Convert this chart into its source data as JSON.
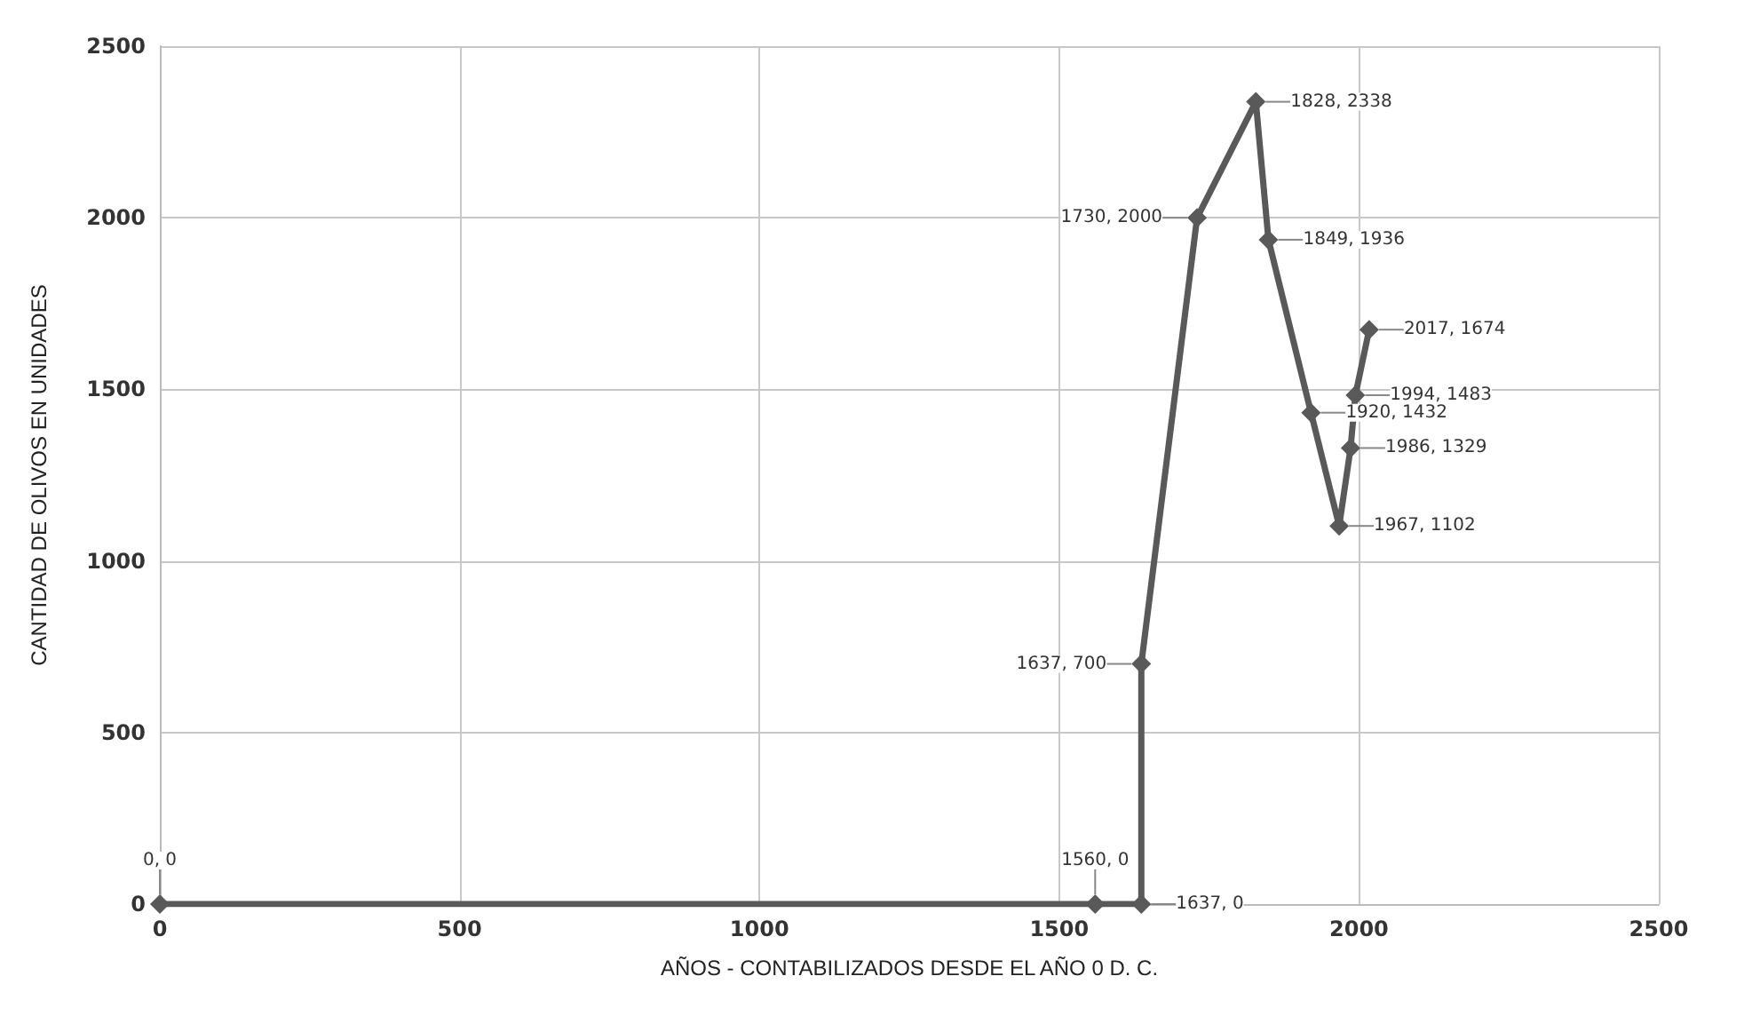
{
  "chart_data": {
    "type": "line",
    "xlabel": "AÑOS - CONTABILIZADOS DESDE EL AÑO 0 D. C.",
    "ylabel": "CANTIDAD DE OLIVOS EN UNIDADES",
    "x": [
      0,
      1560,
      1637,
      1637,
      1730,
      1828,
      1849,
      1920,
      1967,
      1986,
      1994,
      2017
    ],
    "series": [
      {
        "color": "#595959",
        "values": [
          0,
          0,
          0,
          700,
          2000,
          2338,
          1936,
          1432,
          1102,
          1329,
          1483,
          1674
        ],
        "value_labels": [
          "0, 0",
          "1560, 0",
          "1637, 0",
          "1637, 700",
          "1730, 2000",
          "1828, 2338",
          "1849, 1936",
          "1920, 1432",
          "1967, 1102",
          "1986, 1329",
          "1994, 1483",
          "2017, 1674"
        ]
      }
    ],
    "xlim": [
      0,
      2500
    ],
    "xticks": [
      0,
      500,
      1000,
      1500,
      2000,
      2500
    ],
    "ylim": [
      0,
      2500
    ],
    "yticks": [
      0,
      500,
      1000,
      1500,
      2000,
      2500
    ],
    "grid": true,
    "marker": "diamond",
    "line_style": "solid"
  }
}
